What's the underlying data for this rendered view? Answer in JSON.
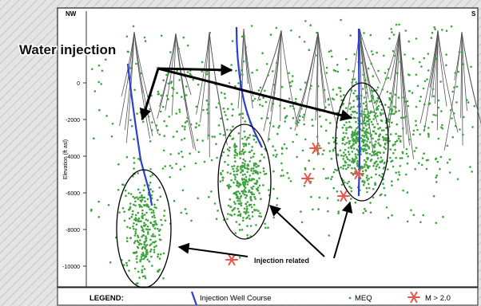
{
  "figure": {
    "corner_left": "NW",
    "corner_right": "S",
    "y_axis_label": "Elevation (ft asl)",
    "y_ticks": [
      "0",
      "-2000",
      "-4000",
      "-6000",
      "-8000",
      "-10000"
    ],
    "callout_top": "Water injection",
    "callout_bottom": "Injection related"
  },
  "legend": {
    "title": "LEGEND:",
    "well_label": "Injection Well Course",
    "meq_label": "MEQ",
    "magnitude_label": "M > 2.0"
  },
  "colors": {
    "well": "#2c3fd4",
    "meq": "#3fa33f",
    "star": "#e8584d",
    "panel": "#ffffff",
    "frame": "#222222"
  }
}
